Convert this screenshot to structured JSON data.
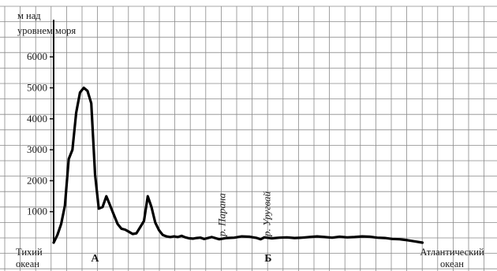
{
  "chart_data": {
    "type": "line",
    "ylabel_lines": [
      "м над",
      "уровнем моря"
    ],
    "yticks": [
      1000,
      2000,
      3000,
      4000,
      5000,
      6000
    ],
    "ylim": [
      0,
      7200
    ],
    "xlim": [
      0,
      100
    ],
    "grid": true,
    "left_label_lines": [
      "Тихий",
      "океан"
    ],
    "right_label_lines": [
      "Атлантический",
      "океан"
    ],
    "points": [
      {
        "name": "А",
        "x": 11
      },
      {
        "name": "Б",
        "x": 57
      }
    ],
    "rivers": [
      {
        "name": "р. Парана",
        "x": 44.5
      },
      {
        "name": "р. Уругвай",
        "x": 56.5
      }
    ],
    "series": [
      {
        "x": [
          0,
          1,
          2,
          3,
          4,
          5,
          6,
          7,
          8,
          9,
          10,
          11,
          12,
          13,
          14,
          15,
          16,
          17,
          18,
          19,
          20,
          21,
          22,
          23,
          24,
          25,
          26,
          27,
          28,
          29,
          30,
          31,
          32,
          33,
          34,
          35,
          36,
          37,
          38,
          39,
          40,
          42,
          44,
          46,
          48,
          50,
          52,
          54,
          55,
          56,
          58,
          60,
          62,
          64,
          66,
          68,
          70,
          72,
          74,
          76,
          78,
          80,
          82,
          84,
          86,
          88,
          90,
          92,
          94,
          96,
          98
        ],
        "y": [
          0,
          250,
          600,
          1200,
          2700,
          3000,
          4200,
          4850,
          5000,
          4900,
          4500,
          2200,
          1100,
          1150,
          1500,
          1200,
          900,
          600,
          450,
          420,
          350,
          280,
          300,
          500,
          700,
          1500,
          1150,
          650,
          400,
          250,
          200,
          180,
          200,
          180,
          220,
          170,
          140,
          130,
          150,
          160,
          120,
          180,
          110,
          150,
          160,
          200,
          190,
          150,
          110,
          170,
          140,
          160,
          170,
          150,
          160,
          180,
          200,
          180,
          160,
          190,
          170,
          180,
          200,
          190,
          160,
          150,
          120,
          110,
          80,
          40,
          0
        ]
      }
    ]
  }
}
